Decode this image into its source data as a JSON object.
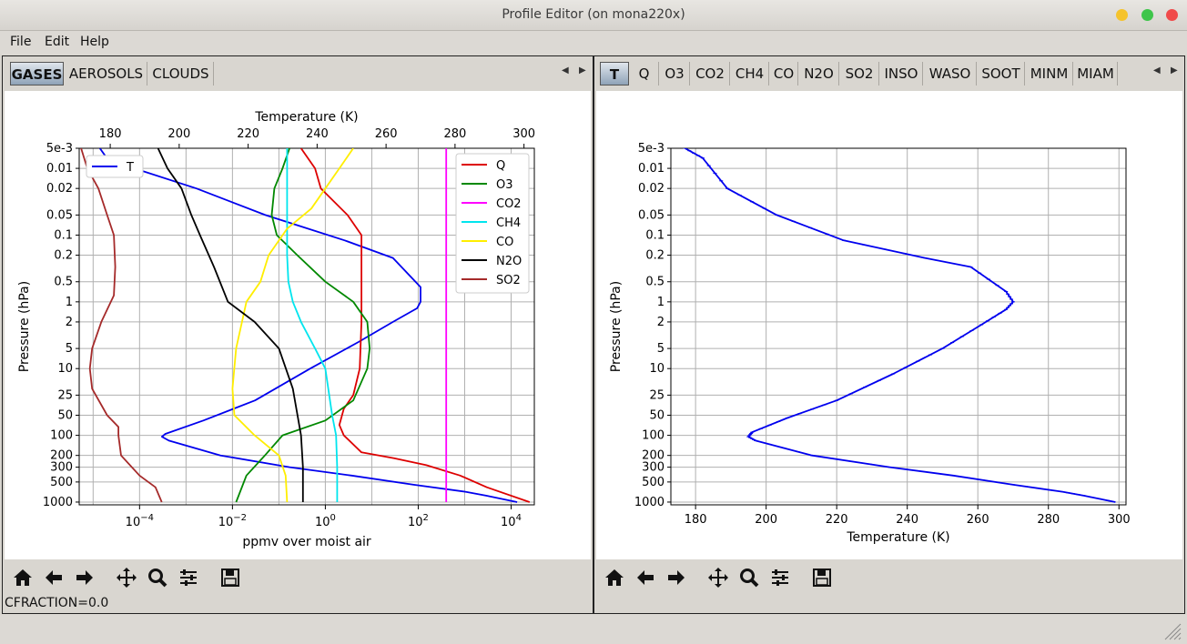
{
  "window": {
    "title": "Profile Editor (on mona220x)"
  },
  "menubar": {
    "items": [
      "File",
      "Edit",
      "Help"
    ]
  },
  "left_pane": {
    "tabs": [
      "GASES",
      "AEROSOLS",
      "CLOUDS"
    ],
    "active_tab": "GASES",
    "status": "CFRACTION=0.0"
  },
  "right_pane": {
    "tabs": [
      "T",
      "Q",
      "O3",
      "CO2",
      "CH4",
      "CO",
      "N2O",
      "SO2",
      "INSO",
      "WASO",
      "SOOT",
      "MINM",
      "MIAM"
    ],
    "active_tab": "T"
  },
  "icons": [
    "home-icon",
    "back-icon",
    "forward-icon",
    "pan-icon",
    "zoom-icon",
    "configure-icon",
    "save-icon"
  ],
  "chart_data": [
    {
      "type": "line",
      "top_axis_label": "Temperature (K)",
      "xlabel": "ppmv over moist air",
      "ylabel": "Pressure (hPa)",
      "y_scale": "log",
      "y_inverted": true,
      "y_ticks": [
        "5e-3",
        "0.01",
        "0.02",
        "0.05",
        "0.1",
        "0.2",
        "0.5",
        "1",
        "2",
        "5",
        "10",
        "25",
        "50",
        "100",
        "200",
        "300",
        "500",
        "1000"
      ],
      "x_ticks": [
        "10⁻⁴",
        "10⁻²",
        "10⁰",
        "10²",
        "10⁴"
      ],
      "x_ticks_raw": {
        "base": "10",
        "exponents": [
          "−4",
          "−2",
          "0",
          "2",
          "4"
        ]
      },
      "top_ticks": [
        "180",
        "200",
        "220",
        "240",
        "260",
        "280",
        "300"
      ],
      "xlim_log10": [
        -5.3,
        4.5
      ],
      "top_xlim": [
        171,
        303
      ],
      "ylim": [
        0.005,
        1100
      ],
      "grid": true,
      "legends": {
        "top_left": [
          "T"
        ],
        "top_right": [
          "Q",
          "O3",
          "CO2",
          "CH4",
          "CO",
          "N2O",
          "SO2"
        ]
      },
      "series": [
        {
          "name": "T",
          "axis": "top",
          "color": "#0000ee",
          "x": [
            177,
            179,
            187,
            205,
            225,
            248,
            262,
            270,
            270,
            269,
            262,
            252,
            238,
            222,
            207,
            196,
            195,
            197,
            212,
            232,
            250,
            268,
            283,
            289,
            298
          ],
          "y": [
            0.005,
            0.007,
            0.01,
            0.02,
            0.05,
            0.12,
            0.22,
            0.6,
            1,
            1.25,
            2,
            4,
            10,
            30,
            60,
            95,
            105,
            120,
            200,
            300,
            400,
            550,
            700,
            800,
            1000
          ]
        },
        {
          "name": "Q",
          "axis": "bottom",
          "color": "#dd0000",
          "x": [
            0.3,
            0.6,
            0.8,
            3,
            6,
            6,
            6,
            5.5,
            4,
            2.5,
            2,
            2.5,
            6,
            30,
            150,
            800,
            3000,
            25000
          ],
          "y": [
            0.005,
            0.01,
            0.02,
            0.05,
            0.1,
            0.3,
            2,
            10,
            25,
            40,
            70,
            100,
            180,
            220,
            280,
            400,
            600,
            1000
          ]
        },
        {
          "name": "O3",
          "axis": "bottom",
          "color": "#008800",
          "x": [
            0.17,
            0.12,
            0.08,
            0.07,
            0.09,
            0.25,
            1,
            4,
            8,
            9,
            8,
            4,
            1,
            0.12,
            0.05,
            0.02,
            0.012
          ],
          "y": [
            0.005,
            0.01,
            0.02,
            0.05,
            0.1,
            0.2,
            0.5,
            1,
            2,
            5,
            10,
            30,
            60,
            100,
            200,
            400,
            1000
          ]
        },
        {
          "name": "CO2",
          "axis": "bottom",
          "color": "#ff00ff",
          "x": [
            400,
            400
          ],
          "y": [
            0.005,
            1000
          ]
        },
        {
          "name": "CH4",
          "axis": "bottom",
          "color": "#00e5ee",
          "x": [
            0.15,
            0.15,
            0.15,
            0.16,
            0.2,
            0.3,
            0.6,
            1.0,
            1.4,
            1.7,
            1.8,
            1.8
          ],
          "y": [
            0.005,
            0.05,
            0.2,
            0.5,
            1,
            2,
            5,
            10,
            50,
            100,
            300,
            1000
          ]
        },
        {
          "name": "CO",
          "axis": "bottom",
          "color": "#ffee00",
          "x": [
            4,
            2,
            1,
            0.5,
            0.15,
            0.06,
            0.04,
            0.02,
            0.012,
            0.01,
            0.011,
            0.03,
            0.1,
            0.14,
            0.15
          ],
          "y": [
            0.005,
            0.01,
            0.02,
            0.04,
            0.08,
            0.2,
            0.5,
            1,
            5,
            20,
            50,
            100,
            200,
            400,
            1000
          ]
        },
        {
          "name": "N2O",
          "axis": "bottom",
          "color": "#000000",
          "x": [
            0.00025,
            0.0004,
            0.0008,
            0.0013,
            0.002,
            0.004,
            0.008,
            0.03,
            0.1,
            0.2,
            0.3,
            0.33,
            0.33
          ],
          "y": [
            0.005,
            0.01,
            0.02,
            0.05,
            0.1,
            0.3,
            1,
            2,
            5,
            20,
            100,
            300,
            1000
          ]
        },
        {
          "name": "SO2",
          "axis": "bottom",
          "color": "#a52a2a",
          "x": [
            5.5e-06,
            7.5e-06,
            1.3e-05,
            2e-05,
            2.8e-05,
            3e-05,
            2.8e-05,
            1.5e-05,
            9.5e-06,
            8.5e-06,
            9.5e-06,
            2e-05,
            3.5e-05,
            3.5e-05,
            4e-05,
            0.0001,
            0.00022,
            0.0003
          ],
          "y": [
            0.005,
            0.01,
            0.02,
            0.05,
            0.1,
            0.3,
            0.8,
            2,
            5,
            10,
            20,
            50,
            75,
            100,
            200,
            400,
            600,
            1000
          ]
        }
      ]
    },
    {
      "type": "line",
      "xlabel": "Temperature (K)",
      "ylabel": "Pressure (hPa)",
      "y_scale": "log",
      "y_inverted": true,
      "y_ticks": [
        "5e-3",
        "0.01",
        "0.02",
        "0.05",
        "0.1",
        "0.2",
        "0.5",
        "1",
        "2",
        "5",
        "10",
        "25",
        "50",
        "100",
        "200",
        "300",
        "500",
        "1000"
      ],
      "x_ticks": [
        "180",
        "200",
        "220",
        "240",
        "260",
        "280",
        "300"
      ],
      "xlim": [
        173,
        302
      ],
      "ylim": [
        0.005,
        1100
      ],
      "grid": true,
      "series": [
        {
          "name": "T",
          "color": "#0000ee",
          "x": [
            177,
            182,
            189,
            203,
            222,
            245,
            258,
            268,
            270,
            268,
            261,
            250,
            236,
            220,
            206,
            196,
            195,
            197,
            213,
            235,
            253,
            270,
            284,
            290,
            299
          ],
          "y": [
            0.005,
            0.007,
            0.02,
            0.05,
            0.12,
            0.22,
            0.3,
            0.7,
            1,
            1.3,
            2.2,
            5,
            12,
            30,
            55,
            90,
            105,
            120,
            200,
            300,
            400,
            550,
            700,
            800,
            1000
          ]
        }
      ]
    }
  ]
}
